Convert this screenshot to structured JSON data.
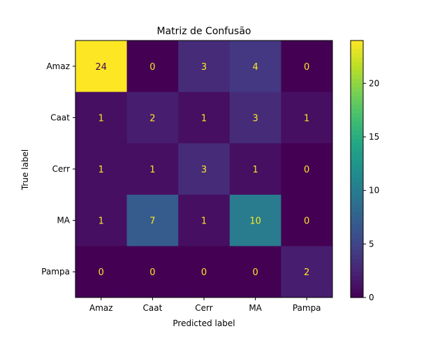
{
  "chart_data": {
    "type": "heatmap",
    "title": "Matriz de Confusão",
    "xlabel": "Predicted label",
    "ylabel": "True label",
    "x_categories": [
      "Amaz",
      "Caat",
      "Cerr",
      "MA",
      "Pampa"
    ],
    "y_categories": [
      "Amaz",
      "Caat",
      "Cerr",
      "MA",
      "Pampa"
    ],
    "values": [
      [
        24,
        0,
        3,
        4,
        0
      ],
      [
        1,
        2,
        1,
        3,
        1
      ],
      [
        1,
        1,
        3,
        1,
        0
      ],
      [
        1,
        7,
        1,
        10,
        0
      ],
      [
        0,
        0,
        0,
        0,
        2
      ]
    ],
    "colormap": "viridis",
    "vmin": 0,
    "vmax": 24,
    "colorbar_ticks": [
      0,
      5,
      10,
      15,
      20
    ],
    "colors": {
      "low_text": "#fde725",
      "high_text": "#440154"
    }
  }
}
